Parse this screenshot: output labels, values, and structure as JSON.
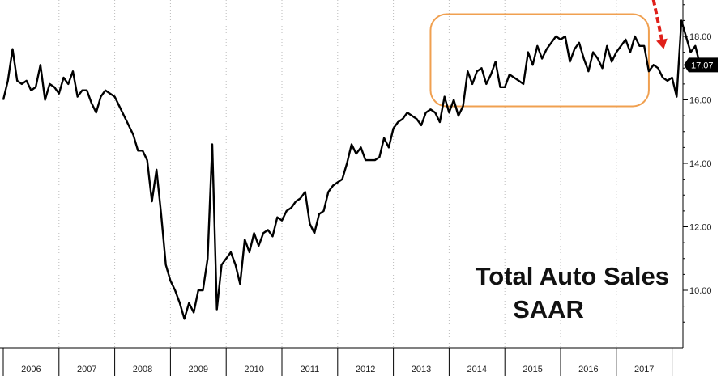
{
  "chart_data": {
    "type": "line",
    "title": "Total Auto Sales",
    "subtitle": "SAAR",
    "xlabel": "",
    "ylabel": "",
    "ylim": [
      8.3,
      19.2
    ],
    "y_ticks": [
      "10.00",
      "12.00",
      "14.00",
      "16.00",
      "18.00"
    ],
    "y_tick_values": [
      10,
      12,
      14,
      16,
      18
    ],
    "y_axis_side": "right",
    "grid": "vertical dotted lines",
    "x_categories": [
      "2006",
      "2007",
      "2008",
      "2009",
      "2010",
      "2011",
      "2012",
      "2013",
      "2014",
      "2015",
      "2016",
      "2017"
    ],
    "series": [
      {
        "color": "#000000",
        "x_start": "2006-01",
        "frequency": "monthly",
        "values": [
          16.0,
          16.6,
          17.6,
          16.6,
          16.5,
          16.6,
          16.3,
          16.4,
          17.1,
          16.0,
          16.5,
          16.4,
          16.2,
          16.7,
          16.5,
          16.9,
          16.1,
          16.3,
          16.3,
          15.9,
          15.6,
          16.1,
          16.3,
          16.2,
          16.1,
          15.8,
          15.5,
          15.2,
          14.9,
          14.4,
          14.4,
          14.1,
          12.8,
          13.8,
          12.4,
          10.8,
          10.3,
          10.0,
          9.6,
          9.1,
          9.6,
          9.3,
          10.0,
          10.0,
          11.0,
          14.6,
          9.4,
          10.8,
          11.0,
          11.2,
          10.8,
          10.2,
          11.6,
          11.2,
          11.8,
          11.4,
          11.8,
          11.9,
          11.7,
          12.3,
          12.2,
          12.5,
          12.6,
          12.8,
          12.9,
          13.1,
          12.1,
          11.8,
          12.4,
          12.5,
          13.1,
          13.3,
          13.4,
          13.5,
          14.0,
          14.6,
          14.3,
          14.5,
          14.1,
          14.1,
          14.1,
          14.2,
          14.8,
          14.5,
          15.1,
          15.3,
          15.4,
          15.6,
          15.5,
          15.4,
          15.2,
          15.6,
          15.7,
          15.6,
          15.3,
          16.1,
          15.6,
          16.0,
          15.5,
          15.8,
          16.9,
          16.5,
          16.9,
          17.0,
          16.5,
          16.8,
          17.2,
          16.4,
          16.4,
          16.8,
          16.7,
          16.6,
          16.5,
          17.5,
          17.1,
          17.7,
          17.3,
          17.6,
          17.8,
          18.0,
          17.9,
          18.0,
          17.2,
          17.6,
          17.8,
          17.3,
          16.9,
          17.5,
          17.3,
          17.0,
          17.7,
          17.2,
          17.5,
          17.7,
          17.9,
          17.5,
          18.0,
          17.7,
          17.7,
          16.9,
          17.1,
          17.0,
          16.7,
          16.6,
          16.7,
          16.1,
          18.5,
          18.0,
          17.5,
          17.7,
          17.1
        ]
      }
    ],
    "last_value_label": "17.07",
    "annotations": [
      {
        "kind": "rounded-rectangle",
        "color": "#f0a050",
        "x_range": [
          "2013-09",
          "2017-08"
        ],
        "y_range": [
          16.0,
          18.7
        ]
      },
      {
        "kind": "dashed-arrow",
        "color": "#e0201a",
        "from": [
          "2017-09",
          18.8
        ],
        "to": [
          "2017-11",
          17.9
        ]
      }
    ]
  }
}
